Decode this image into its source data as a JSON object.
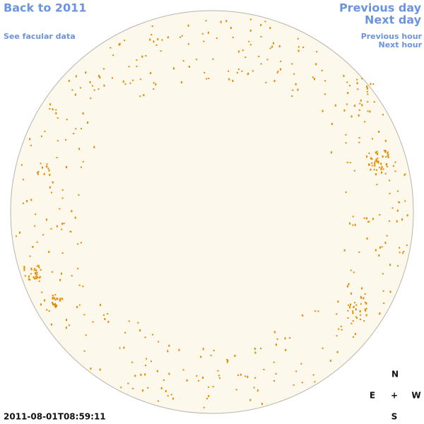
{
  "nav": {
    "back": "Back to 2011",
    "facular": "See facular data",
    "previous_day": "Previous day",
    "next_day": "Next day",
    "previous_hour": "Previous hour",
    "next_hour": "Next hour"
  },
  "timestamp": "2011-08-01T08:59:11",
  "compass": {
    "north": "N",
    "east": "E",
    "center": "+",
    "west": "W",
    "south": "S"
  }
}
